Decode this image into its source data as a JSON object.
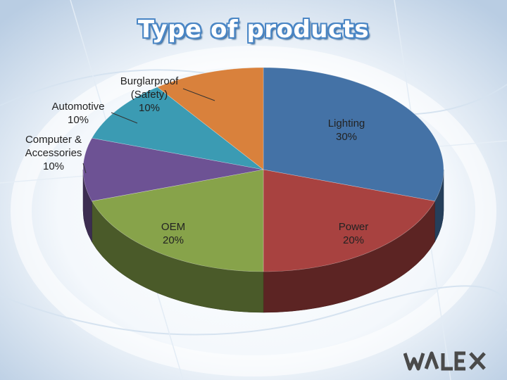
{
  "title": "Type of products",
  "logo": {
    "text": "WALEX",
    "color": "#4a4a4a"
  },
  "chart_data": {
    "type": "pie",
    "title": "Type of products",
    "slices": [
      {
        "label": "Lighting",
        "value": 30,
        "pct": "30%",
        "color": "#4472a6"
      },
      {
        "label": "Power",
        "value": 20,
        "pct": "20%",
        "color": "#a84240"
      },
      {
        "label": "OEM",
        "value": 20,
        "pct": "20%",
        "color": "#87a34a"
      },
      {
        "label": "Computer & Accessories",
        "value": 10,
        "pct": "10%",
        "color": "#6d5294"
      },
      {
        "label": "Automotive",
        "value": 10,
        "pct": "10%",
        "color": "#3b9bb3"
      },
      {
        "label": "Burglarproof (Safety)",
        "value": 10,
        "pct": "10%",
        "color": "#d9813c"
      }
    ]
  }
}
